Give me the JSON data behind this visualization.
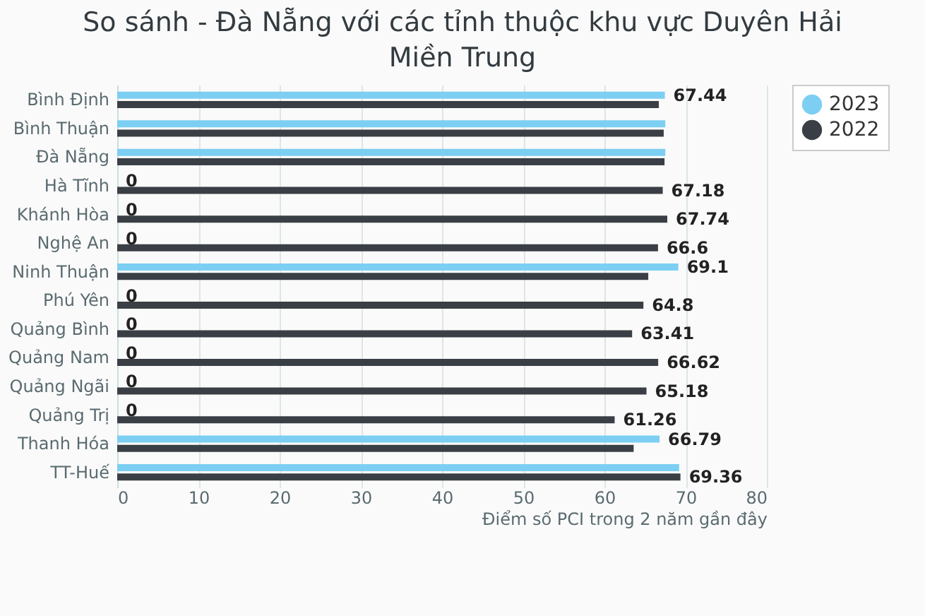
{
  "chart_data": {
    "type": "bar",
    "orientation": "horizontal",
    "title": "So sánh - Đà Nẵng với các tỉnh thuộc khu vực Duyên Hải Miền Trung",
    "xlabel": "Điểm số PCI trong 2 năm gần đây",
    "categories": [
      "Bình Định",
      "Bình Thuận",
      "Đà Nẵng",
      "Hà Tĩnh",
      "Khánh Hòa",
      "Nghệ An",
      "Ninh Thuận",
      "Phú Yên",
      "Quảng Bình",
      "Quảng Nam",
      "Quảng Ngãi",
      "Quảng Trị",
      "Thanh Hóa",
      "TT-Huế"
    ],
    "series": [
      {
        "name": "2023",
        "color": "#7ccff2",
        "values": [
          67.44,
          67.5,
          67.5,
          0,
          0,
          0,
          69.1,
          0,
          0,
          0,
          0,
          0,
          66.79,
          69.2
        ],
        "value_labels": [
          "67.44",
          null,
          null,
          "0",
          "0",
          "0",
          "69.1",
          "0",
          "0",
          "0",
          "0",
          "0",
          "66.79",
          null
        ]
      },
      {
        "name": "2022",
        "color": "#3a3f46",
        "values": [
          66.7,
          67.3,
          67.4,
          67.18,
          67.74,
          66.6,
          65.4,
          64.8,
          63.41,
          66.62,
          65.18,
          61.26,
          63.6,
          69.36
        ],
        "value_labels": [
          null,
          null,
          null,
          "67.18",
          "67.74",
          "66.6",
          null,
          "64.8",
          "63.41",
          "66.62",
          "65.18",
          "61.26",
          null,
          "69.36"
        ]
      }
    ],
    "xlim": [
      0,
      80
    ],
    "xticks": [
      0,
      10,
      20,
      30,
      40,
      50,
      60,
      70,
      80
    ],
    "grid": "x",
    "legend": "right"
  }
}
